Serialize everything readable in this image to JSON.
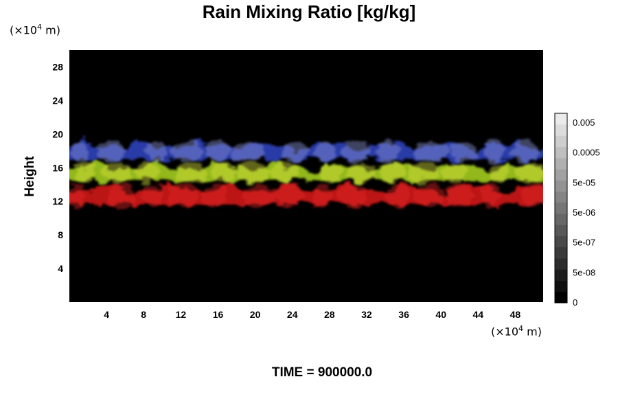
{
  "chart_data": {
    "type": "heatmap",
    "title": "Rain Mixing Ratio [kg/kg]",
    "xlabel": "",
    "ylabel": "Height",
    "x_unit": "(×10⁴ m)",
    "y_unit": "(×10⁴ m)",
    "x_unit_exponent": "4",
    "y_unit_exponent": "4",
    "xlim": [
      0,
      51
    ],
    "ylim": [
      0,
      30
    ],
    "x_ticks": [
      "4",
      "8",
      "12",
      "16",
      "20",
      "24",
      "28",
      "32",
      "36",
      "40",
      "44",
      "48"
    ],
    "y_ticks": [
      "4",
      "8",
      "12",
      "16",
      "20",
      "24",
      "28"
    ],
    "colorbar": {
      "ticks": [
        "0.005",
        "0.0005",
        "5e-05",
        "5e-06",
        "5e-07",
        "5e-08",
        "0"
      ],
      "levels": 17,
      "colors": [
        "#000000",
        "#ffffff"
      ]
    },
    "layers": [
      {
        "color": "#cc1a1a",
        "y_range": [
          10.5,
          14.5
        ]
      },
      {
        "color": "#9ec81e",
        "y_range": [
          13.5,
          17
        ]
      },
      {
        "color": "#2b3fb5",
        "y_range": [
          16,
          19.5
        ]
      }
    ],
    "background": "#000000",
    "footer": "TIME = 900000.0"
  }
}
